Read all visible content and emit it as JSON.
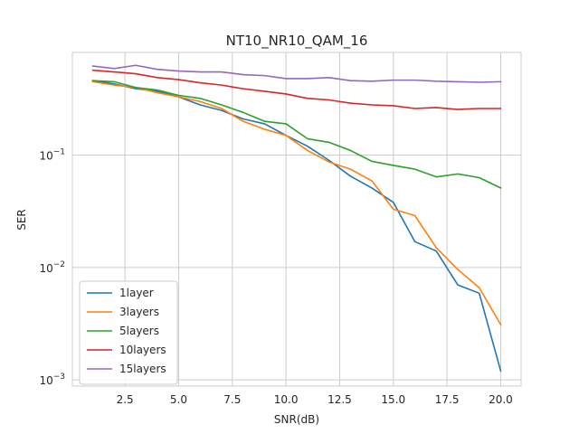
{
  "chart_data": {
    "type": "line",
    "title": "NT10_NR10_QAM_16",
    "xlabel": "SNR(dB)",
    "ylabel": "SER",
    "xlim": [
      0.05,
      20.95
    ],
    "ylim": [
      0.00088,
      0.82
    ],
    "yscale": "log",
    "grid": true,
    "legend_position": "lower-left",
    "xticks": [
      2.5,
      5.0,
      7.5,
      10.0,
      12.5,
      15.0,
      17.5,
      20.0
    ],
    "xtick_labels": [
      "2.5",
      "5.0",
      "7.5",
      "10.0",
      "12.5",
      "15.0",
      "17.5",
      "20.0"
    ],
    "yticks": [
      0.001,
      0.01,
      0.1
    ],
    "ytick_labels": [
      {
        "base": "10",
        "exp": "−3"
      },
      {
        "base": "10",
        "exp": "−2"
      },
      {
        "base": "10",
        "exp": "−1"
      }
    ],
    "x": [
      1,
      2,
      3,
      4,
      5,
      6,
      7,
      8,
      9,
      10,
      11,
      12,
      13,
      14,
      15,
      16,
      17,
      18,
      19,
      20
    ],
    "series": [
      {
        "name": "1layer",
        "color": "#1f77b4",
        "values": [
          0.46,
          0.43,
          0.39,
          0.37,
          0.33,
          0.28,
          0.25,
          0.21,
          0.19,
          0.15,
          0.12,
          0.09,
          0.065,
          0.051,
          0.038,
          0.017,
          0.014,
          0.007,
          0.0059,
          0.0012
        ]
      },
      {
        "name": "3layers",
        "color": "#ff7f0e",
        "values": [
          0.45,
          0.42,
          0.4,
          0.36,
          0.33,
          0.3,
          0.26,
          0.2,
          0.17,
          0.15,
          0.11,
          0.087,
          0.075,
          0.059,
          0.033,
          0.029,
          0.015,
          0.0096,
          0.0066,
          0.0031
        ]
      },
      {
        "name": "5layers",
        "color": "#2ca02c",
        "values": [
          0.46,
          0.45,
          0.4,
          0.38,
          0.34,
          0.32,
          0.28,
          0.24,
          0.2,
          0.19,
          0.14,
          0.13,
          0.11,
          0.088,
          0.081,
          0.075,
          0.064,
          0.068,
          0.063,
          0.051
        ]
      },
      {
        "name": "10layers",
        "color": "#d62728",
        "values": [
          0.57,
          0.55,
          0.53,
          0.49,
          0.47,
          0.44,
          0.42,
          0.39,
          0.37,
          0.35,
          0.32,
          0.31,
          0.29,
          0.28,
          0.275,
          0.26,
          0.265,
          0.255,
          0.26,
          0.26
        ]
      },
      {
        "name": "15layers",
        "color": "#9467bd",
        "values": [
          0.62,
          0.59,
          0.63,
          0.58,
          0.56,
          0.55,
          0.55,
          0.52,
          0.51,
          0.48,
          0.48,
          0.49,
          0.46,
          0.455,
          0.465,
          0.465,
          0.455,
          0.45,
          0.445,
          0.45
        ]
      }
    ]
  }
}
